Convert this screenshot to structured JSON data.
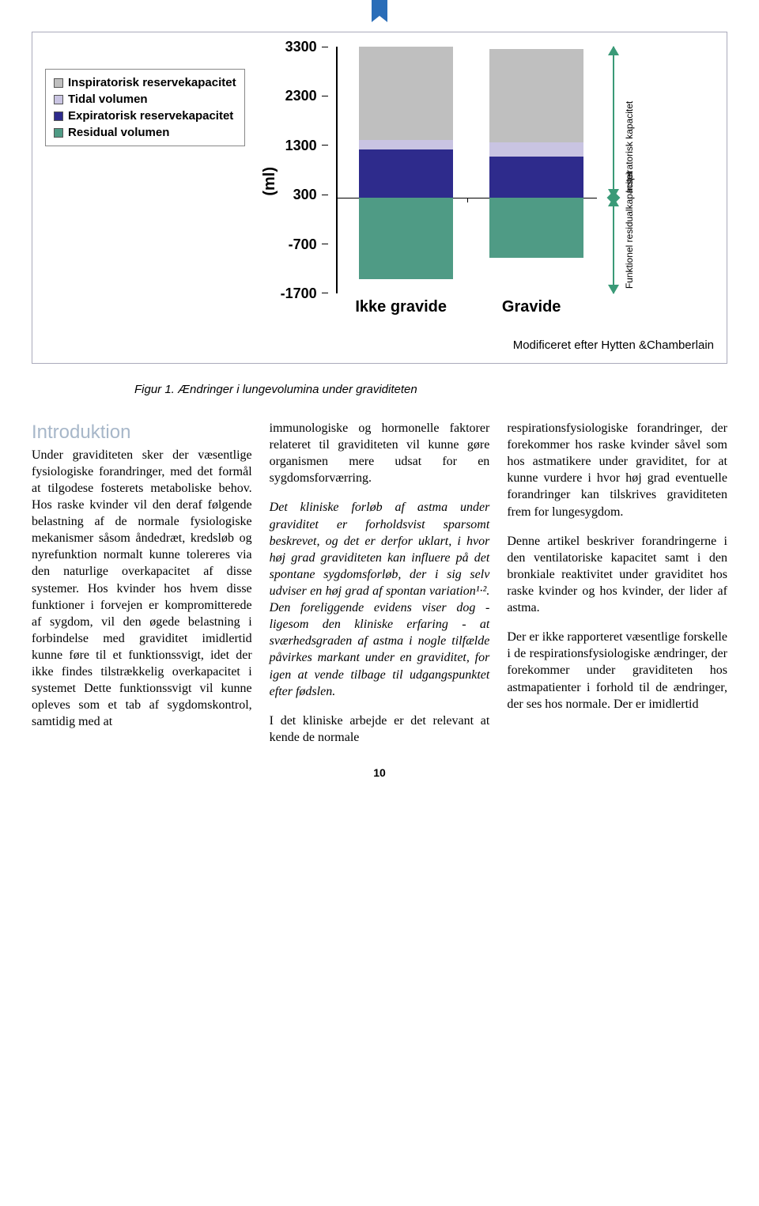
{
  "chart": {
    "type": "stacked-bar",
    "y_label": "(ml)",
    "y_ticks": [
      3300,
      2300,
      1300,
      300,
      -700,
      -1700
    ],
    "y_max": 3450,
    "y_min": -1700,
    "zero_value": 300,
    "bar_width_ratio": 0.72,
    "categories": [
      "Ikke gravide",
      "Gravide"
    ],
    "series": [
      {
        "key": "insp_res",
        "label": "Inspiratorisk reservekapacitet",
        "color": "#bfbfbf"
      },
      {
        "key": "tidal",
        "label": "Tidal volumen",
        "color": "#c9c4e2"
      },
      {
        "key": "exp_res",
        "label": "Expiratorisk reservekapacitet",
        "color": "#2e2b8c"
      },
      {
        "key": "residual",
        "label": "Residual volumen",
        "color": "#4f9b85"
      }
    ],
    "data": [
      {
        "insp_res": 1950,
        "tidal": 200,
        "exp_res": 1000,
        "residual": 1700
      },
      {
        "insp_res": 1950,
        "tidal": 300,
        "exp_res": 850,
        "residual": 1250
      }
    ],
    "capacity_arrows": {
      "color": "#3a9a77",
      "upper_label": "Inspiratorisk kapacitet",
      "lower_label": "Funktionel residualkapacitet",
      "top_value": 3450,
      "mid_value": 300,
      "bottom_value": -1700
    },
    "source": "Modificeret efter Hytten &Chamberlain"
  },
  "caption": "Figur 1. Ændringer i lungevolumina under graviditeten",
  "text": {
    "intro_heading": "Introduktion",
    "p1": "Under graviditeten sker der væsentlige fysiologiske forandringer, med det formål at tilgodese fosterets metaboliske behov. Hos raske kvinder vil den deraf følgende belastning af de normale fysiologiske mekanismer såsom åndedræt, kredsløb og nyrefunktion normalt kunne tolereres via den naturlige overkapacitet af disse systemer. Hos kvinder hos hvem disse funktioner i forvejen er kompromitterede af sygdom, vil den øgede belastning i forbindelse med graviditet imidlertid kunne føre til et funktionssvigt, idet der ikke findes tilstrækkelig overkapacitet i systemet Dette funktionssvigt vil kunne opleves som et tab af sygdomskontrol, samtidig med at",
    "p2": "immunologiske og hormonelle faktorer relateret til graviditeten vil kunne gøre organismen mere udsat for en sygdomsforværring.",
    "p3": "Det kliniske forløb af astma under graviditet er forholdsvist sparsomt beskrevet, og det er derfor uklart, i hvor høj grad graviditeten kan influere på det spontane sygdomsforløb, der i sig selv udviser en høj grad af spontan variation¹·². Den foreliggende evidens viser dog - ligesom den kliniske erfaring - at sværhedsgraden af astma i nogle tilfælde påvirkes markant under en graviditet, for igen at vende tilbage til udgangspunktet efter fødslen.",
    "p4": "I det kliniske arbejde er det relevant at kende de normale",
    "p5": "respirationsfysiologiske forandringer, der forekommer hos raske kvinder såvel som hos astmatikere under graviditet, for at kunne vurdere i hvor høj grad eventuelle forandringer kan tilskrives graviditeten frem for lungesygdom.",
    "p6": "Denne artikel beskriver forandringerne i den ventilatoriske kapacitet samt i den bronkiale reaktivitet under graviditet hos raske kvinder og hos kvinder, der lider af astma.",
    "p7": "Der er ikke rapporteret væsentlige forskelle i de respirationsfysiologiske ændringer, der forekommer under graviditeten hos astmapatienter i forhold til de ændringer, der ses hos normale. Der er imidlertid"
  },
  "page_number": "10"
}
